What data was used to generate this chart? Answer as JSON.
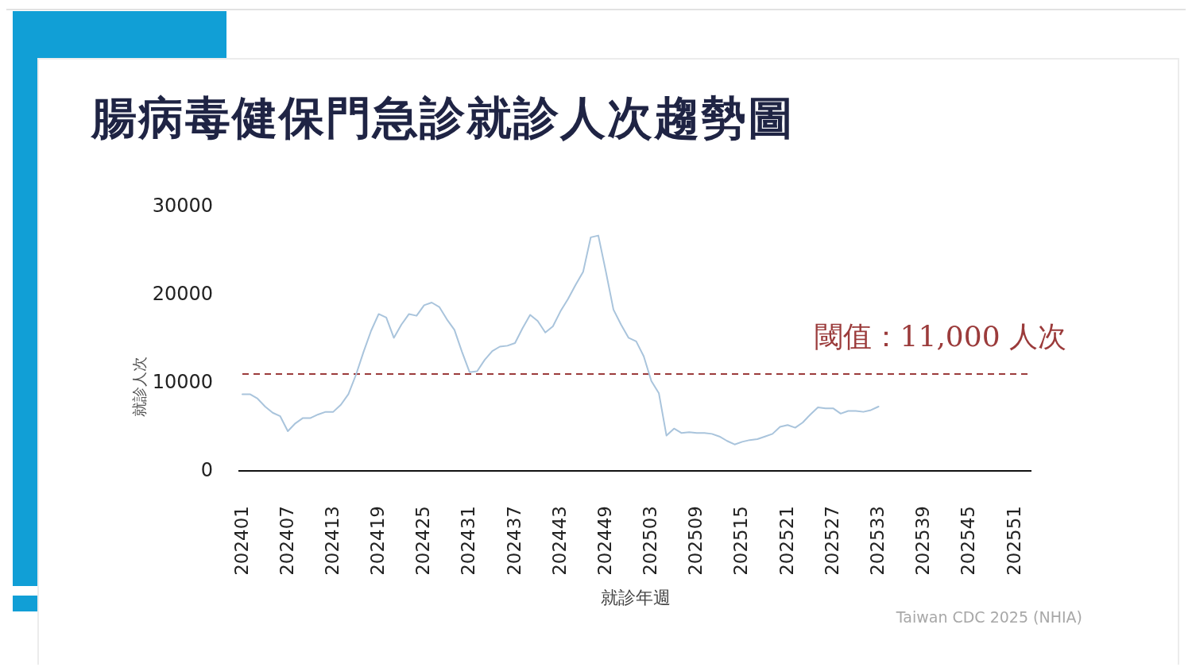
{
  "chart_data": {
    "type": "line",
    "title": "腸病毒健保門急診就診人次趨勢圖",
    "xlabel": "就診年週",
    "ylabel": "就診人次",
    "annotations": [
      "Taiwan CDC 2025 (NHIA)"
    ],
    "categories": [
      "202401",
      null,
      null,
      null,
      null,
      null,
      "202407",
      null,
      null,
      null,
      null,
      null,
      "202413",
      null,
      null,
      null,
      null,
      null,
      "202419",
      null,
      null,
      null,
      null,
      null,
      "202425",
      null,
      null,
      null,
      null,
      null,
      "202431",
      null,
      null,
      null,
      null,
      null,
      "202437",
      null,
      null,
      null,
      null,
      null,
      "202443",
      null,
      null,
      null,
      null,
      null,
      "202449",
      null,
      null,
      null,
      null,
      null,
      "202503",
      null,
      null,
      null,
      null,
      null,
      "202509",
      null,
      null,
      null,
      null,
      null,
      "202515",
      null,
      null,
      null,
      null,
      null,
      "202521",
      null,
      null,
      null,
      null,
      null,
      "202527",
      null,
      null,
      null,
      null,
      null,
      "202533",
      null,
      null,
      null,
      null,
      null,
      "202539",
      null,
      null,
      null,
      null,
      null,
      "202545",
      null,
      null,
      null,
      null,
      null,
      "202551",
      null
    ],
    "series": [
      {
        "color": "#a9c4dc",
        "values": [
          8700,
          8700,
          8200,
          7300,
          6600,
          6200,
          4500,
          5400,
          6000,
          6000,
          6400,
          6700,
          6700,
          7500,
          8700,
          10900,
          13500,
          15900,
          17800,
          17400,
          15100,
          16600,
          17800,
          17600,
          18800,
          19100,
          18600,
          17200,
          16000,
          13500,
          11200,
          11300,
          12600,
          13600,
          14100,
          14200,
          14500,
          16200,
          17700,
          17000,
          15700,
          16400,
          18100,
          19500,
          21100,
          22600,
          26500,
          26700,
          22600,
          18300,
          16600,
          15100,
          14700,
          13000,
          10200,
          8800,
          4000,
          4800,
          4300,
          4400,
          4300,
          4300,
          4200,
          3900,
          3400,
          3000,
          3300,
          3500,
          3600,
          3900,
          4200,
          5000,
          5200,
          4900,
          5500,
          6400,
          7200,
          7100,
          7100,
          6500,
          6800,
          6800,
          6700,
          6900,
          7300,
          null,
          null,
          null,
          null,
          null,
          null,
          null,
          null,
          null,
          null,
          null,
          null,
          null,
          null,
          null,
          null,
          null,
          null,
          null
        ]
      }
    ],
    "ylim": [
      0,
      30000
    ],
    "yticks": [
      0,
      10000,
      20000,
      30000
    ],
    "ref_lines": [
      {
        "axis": "y",
        "value": 11000,
        "label": "閾值：11,000 人次",
        "color": "#9b3b3b",
        "line_style": "dashed"
      }
    ]
  }
}
